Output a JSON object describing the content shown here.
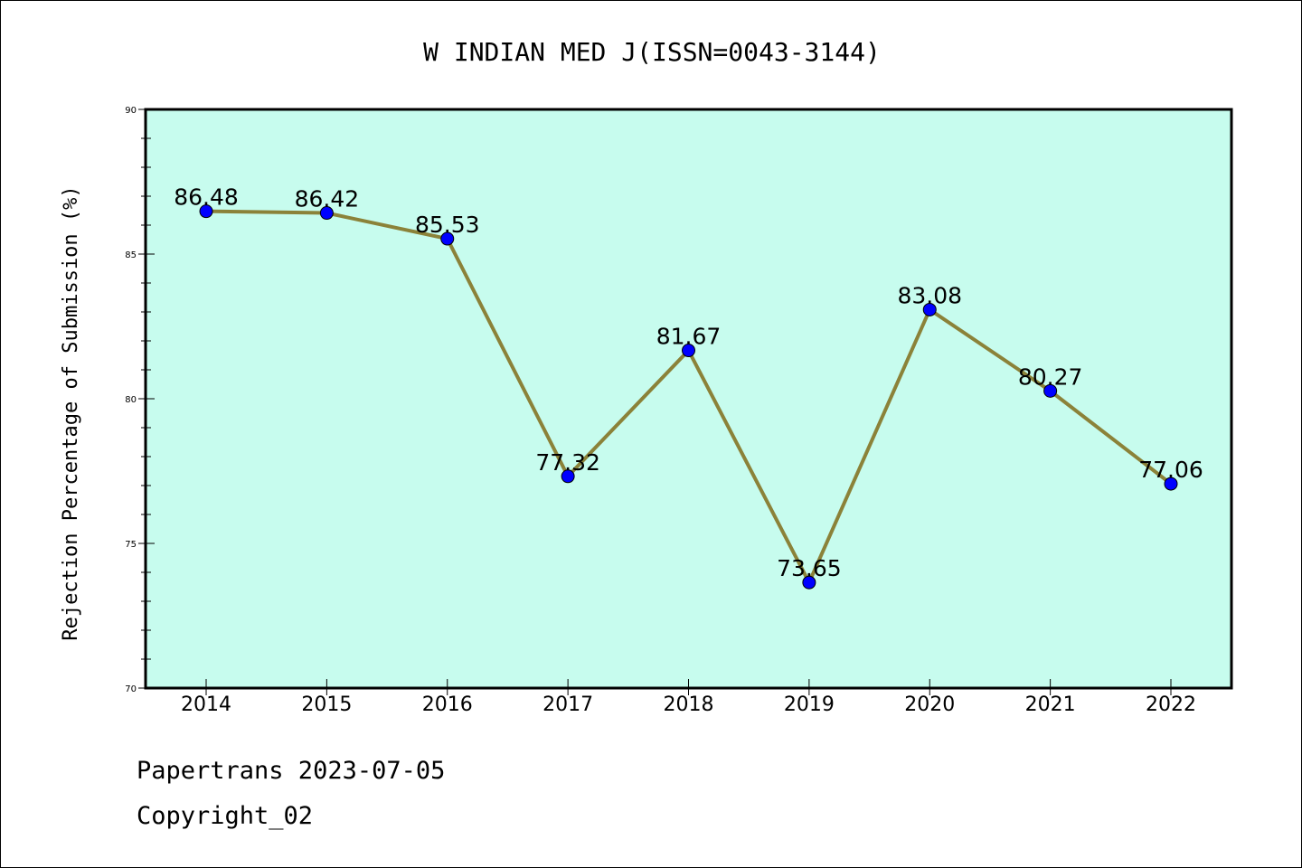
{
  "colors": {
    "plot_background": "#c7fcee",
    "line": "#8b8239",
    "marker": "#0000ff",
    "axis": "#000000"
  },
  "footer": {
    "line1": "Papertrans 2023-07-05",
    "line2": "Copyright_02"
  },
  "chart_data": {
    "type": "line",
    "title": "W INDIAN MED J(ISSN=0043-3144)",
    "xlabel": "",
    "ylabel": "Rejection Percentage of Submission (%)",
    "categories": [
      "2014",
      "2015",
      "2016",
      "2017",
      "2018",
      "2019",
      "2020",
      "2021",
      "2022"
    ],
    "series": [
      {
        "values": [
          86.48,
          86.42,
          85.53,
          77.32,
          81.67,
          73.65,
          83.08,
          80.27,
          77.06
        ],
        "labels": [
          "86.48",
          "86.42",
          "85.53",
          "77.32",
          "81.67",
          "73.65",
          "83.08",
          "80.27",
          "77.06"
        ]
      }
    ],
    "ylim": [
      70,
      90
    ],
    "yticks": [
      70,
      75,
      80,
      85,
      90
    ],
    "y_minor_step": 1,
    "grid": false,
    "markers": "circle",
    "data_labels": true
  }
}
